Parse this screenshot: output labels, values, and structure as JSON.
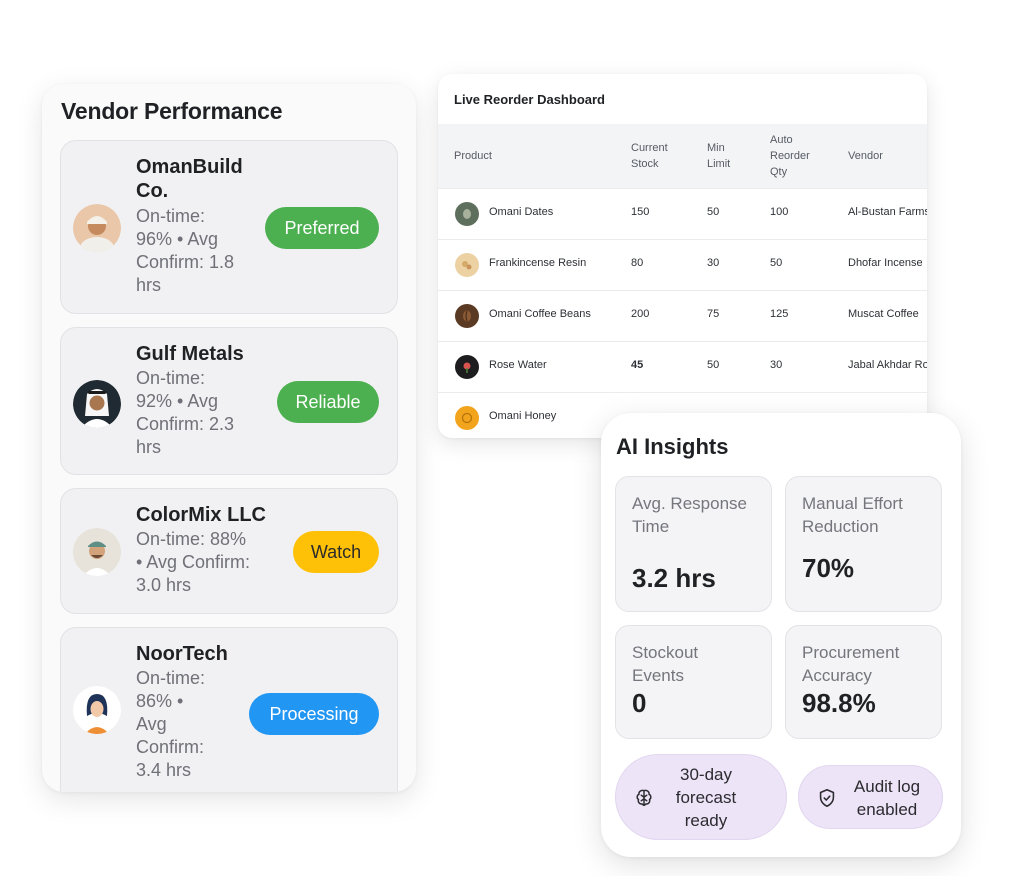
{
  "vendor_panel": {
    "title": "Vendor Performance",
    "vendors": [
      {
        "name_lines": [
          "OmanBuild",
          "Co."
        ],
        "meta_lines": [
          "On-time:",
          "96% • Avg",
          "Confirm: 1.8",
          "hrs"
        ],
        "badge": "Preferred",
        "badge_color": "#4caf50",
        "avatar": "man-turban-icon"
      },
      {
        "name_lines": [
          "Gulf Metals"
        ],
        "meta_lines": [
          "On-time:",
          "92% • Avg",
          "Confirm: 2.3",
          "hrs"
        ],
        "badge": "Reliable",
        "badge_color": "#4caf50",
        "avatar": "man-ghutra-icon"
      },
      {
        "name_lines": [
          "ColorMix LLC"
        ],
        "meta_lines": [
          "On-time: 88%",
          "• Avg Confirm:",
          "3.0 hrs"
        ],
        "badge": "Watch",
        "badge_color": "#ffc107",
        "avatar": "man-kumma-icon"
      },
      {
        "name_lines": [
          "NoorTech"
        ],
        "meta_lines": [
          "On-time:",
          "86% •",
          "Avg",
          "Confirm:",
          "3.4 hrs"
        ],
        "badge": "Processing",
        "badge_color": "#2196f3",
        "avatar": "woman-hijab-icon"
      }
    ]
  },
  "reorder_dashboard": {
    "title": "Live Reorder Dashboard",
    "columns": {
      "product": "Product",
      "current_stock": [
        "Current",
        "Stock"
      ],
      "min_limit": [
        "Min",
        "Limit"
      ],
      "auto_reorder": [
        "Auto",
        "Reorder",
        "Qty"
      ],
      "vendor": "Vendor"
    },
    "rows": [
      {
        "product": "Omani Dates",
        "stock": "150",
        "min": "50",
        "reorder": "100",
        "vendor": "Al-Bustan Farms",
        "low": false,
        "icon": "dates-icon"
      },
      {
        "product": "Frankincense Resin",
        "stock": "80",
        "min": "30",
        "reorder": "50",
        "vendor": "Dhofar Incense",
        "low": false,
        "icon": "resin-icon"
      },
      {
        "product": "Omani Coffee Beans",
        "stock": "200",
        "min": "75",
        "reorder": "125",
        "vendor": "Muscat Coffee",
        "low": false,
        "icon": "coffee-icon"
      },
      {
        "product": "Rose Water",
        "stock": "45",
        "min": "50",
        "reorder": "30",
        "vendor": "Jabal Akhdar Roses",
        "low": true,
        "icon": "rose-icon"
      },
      {
        "product": "Omani Honey",
        "stock": "",
        "min": "",
        "reorder": "",
        "vendor": "",
        "low": false,
        "icon": "honey-icon"
      }
    ]
  },
  "ai_insights": {
    "title": "AI Insights",
    "metrics": [
      {
        "label_lines": [
          "Avg. Response",
          "Time"
        ],
        "value": "3.2 hrs"
      },
      {
        "label_lines": [
          "Manual Effort",
          "Reduction"
        ],
        "value": "70%"
      },
      {
        "label_lines": [
          "Stockout",
          "Events"
        ],
        "value": "0"
      },
      {
        "label_lines": [
          "Procurement",
          "Accuracy"
        ],
        "value": "98.8%"
      }
    ],
    "pills": [
      {
        "lines": [
          "30-day",
          "forecast",
          "ready"
        ],
        "icon": "brain-icon"
      },
      {
        "lines": [
          "Audit log",
          "enabled"
        ],
        "icon": "shield-check-icon"
      }
    ]
  }
}
